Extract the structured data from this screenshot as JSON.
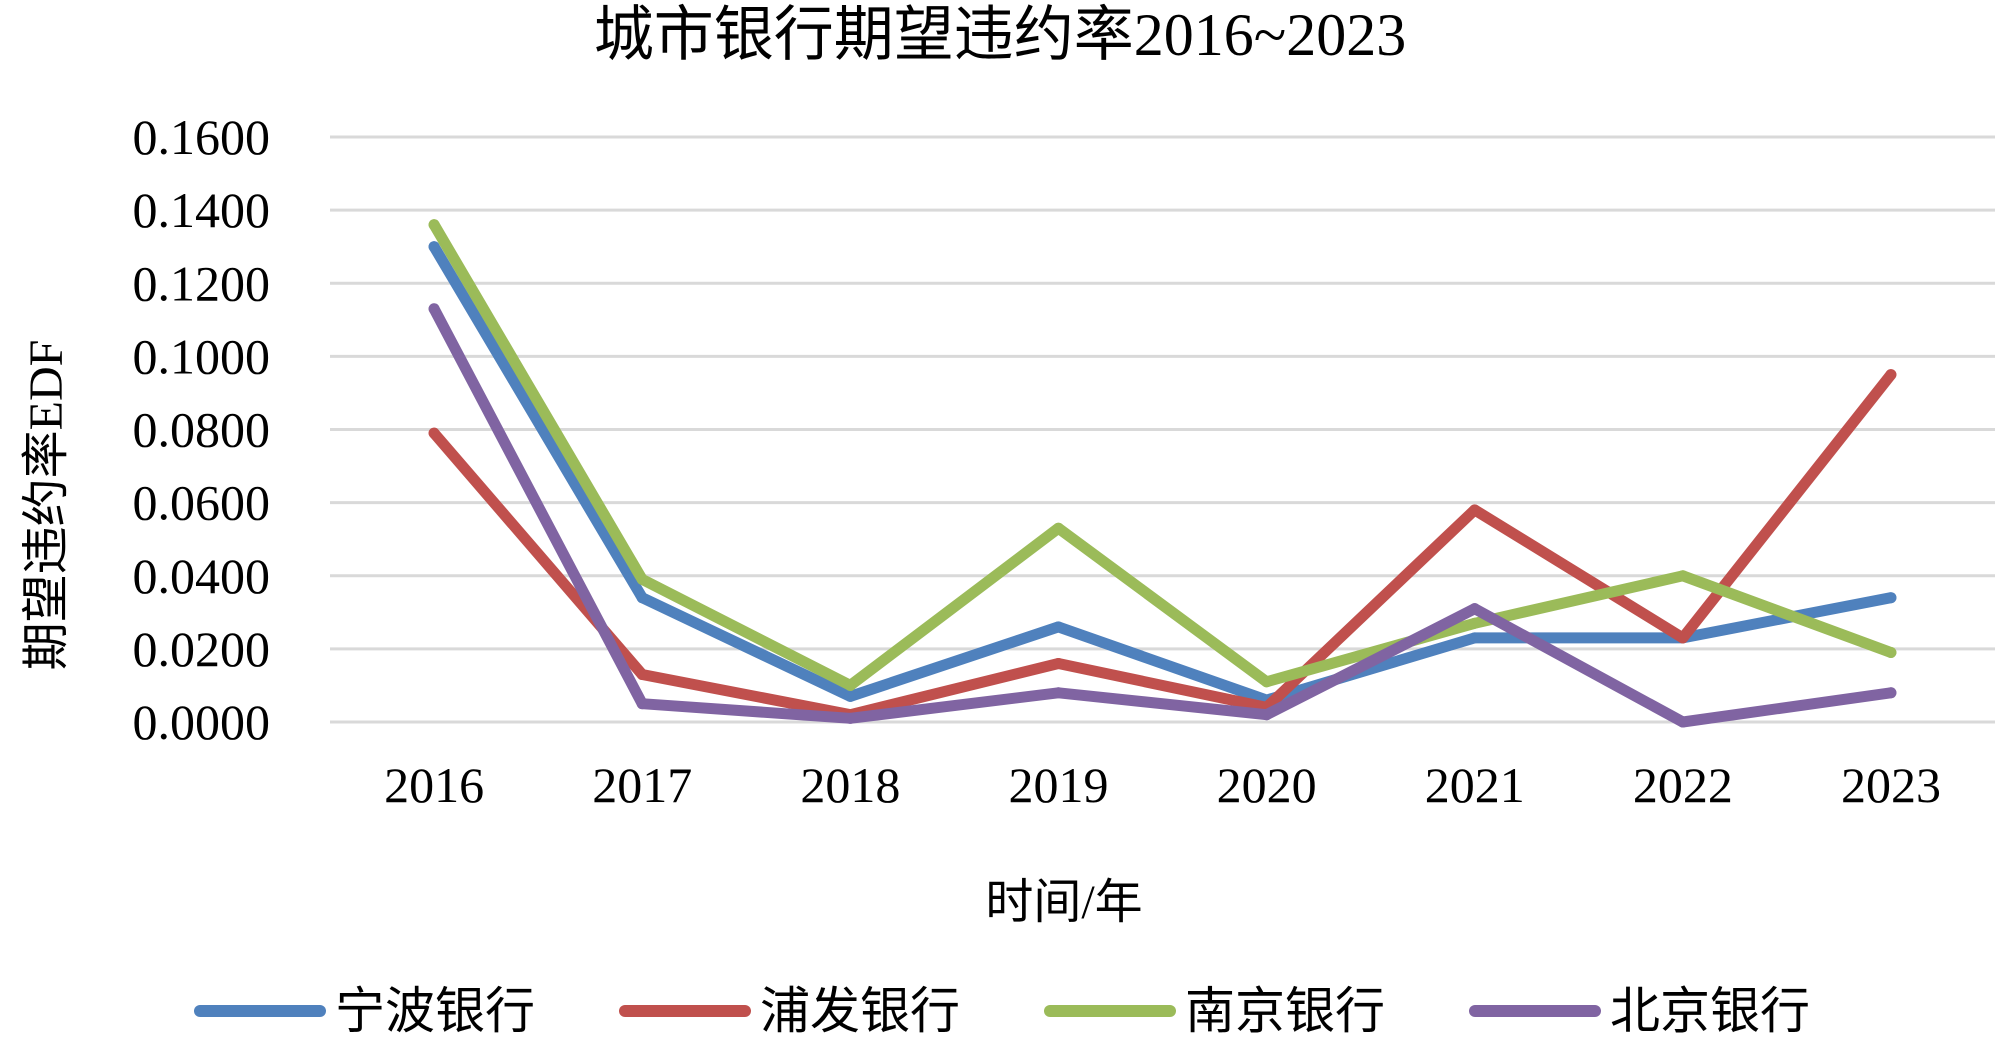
{
  "chart_data": {
    "type": "line",
    "title": "城市银行期望违约率2016~2023",
    "xlabel": "时间/年",
    "ylabel": "期望违约率EDF",
    "categories": [
      "2016",
      "2017",
      "2018",
      "2019",
      "2020",
      "2021",
      "2022",
      "2023"
    ],
    "ylim": [
      0,
      0.16
    ],
    "yticks": [
      "0.0000",
      "0.0200",
      "0.0400",
      "0.0600",
      "0.0800",
      "0.1000",
      "0.1200",
      "0.1400",
      "0.1600"
    ],
    "grid": true,
    "legend_position": "bottom",
    "series": [
      {
        "name": "宁波银行",
        "color": "#4F81BD",
        "values": [
          0.13,
          0.034,
          0.007,
          0.026,
          0.006,
          0.023,
          0.023,
          0.034
        ]
      },
      {
        "name": "浦发银行",
        "color": "#C0504D",
        "values": [
          0.079,
          0.013,
          0.002,
          0.016,
          0.004,
          0.058,
          0.023,
          0.095
        ]
      },
      {
        "name": "南京银行",
        "color": "#9BBB59",
        "values": [
          0.136,
          0.039,
          0.01,
          0.053,
          0.011,
          0.027,
          0.04,
          0.019
        ]
      },
      {
        "name": "北京银行",
        "color": "#8064A2",
        "values": [
          0.113,
          0.005,
          0.001,
          0.008,
          0.002,
          0.031,
          0.0,
          0.008
        ]
      }
    ]
  }
}
